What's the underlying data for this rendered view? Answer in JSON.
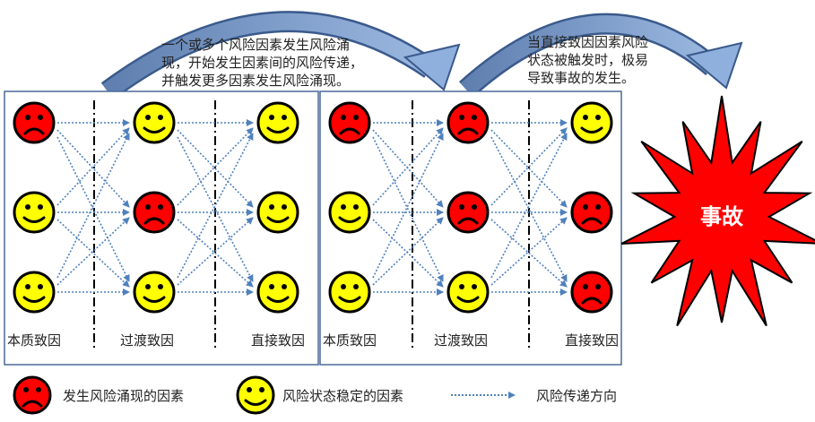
{
  "annotations": {
    "left": [
      "一个或多个风险因素发生风险涌",
      "现，开始发生因素间的风险传递，",
      "并触发更多因素发生风险涌现。"
    ],
    "right": [
      "当直接致因因素风险",
      "状态被触发时，极易",
      "导致事故的发生。"
    ]
  },
  "panels": [
    {
      "columns": [
        {
          "label": "本质致因",
          "states": [
            "risk",
            "stable",
            "stable"
          ]
        },
        {
          "label": "过渡致因",
          "states": [
            "stable",
            "risk",
            "stable"
          ]
        },
        {
          "label": "直接致因",
          "states": [
            "stable",
            "stable",
            "stable"
          ]
        }
      ]
    },
    {
      "columns": [
        {
          "label": "本质致因",
          "states": [
            "risk",
            "stable",
            "stable"
          ]
        },
        {
          "label": "过渡致因",
          "states": [
            "risk",
            "risk",
            "stable"
          ]
        },
        {
          "label": "直接致因",
          "states": [
            "stable",
            "risk",
            "risk"
          ]
        }
      ]
    }
  ],
  "accident": {
    "label": "事故"
  },
  "legend": {
    "risk": "发生风险涌现的因素",
    "stable": "风险状态稳定的因素",
    "arrow": "风险传递方向"
  },
  "colors": {
    "risk": "#ff0000",
    "stable": "#ffff00",
    "arrow": "#4f81bd",
    "curve": "#6a8cc4",
    "curve_stroke": "#3a5a8c"
  }
}
